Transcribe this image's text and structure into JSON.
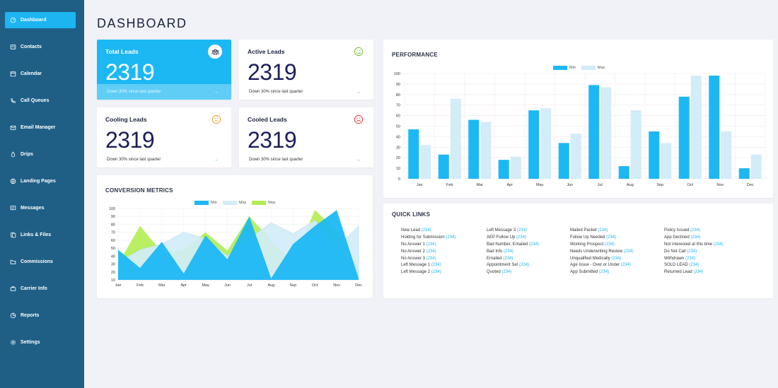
{
  "sidebar": {
    "items": [
      {
        "label": "Dashboard",
        "icon": "dashboard-icon",
        "active": true
      },
      {
        "label": "Contacts",
        "icon": "contacts-icon",
        "active": false
      },
      {
        "label": "Calendar",
        "icon": "calendar-icon",
        "active": false
      },
      {
        "label": "Call Queues",
        "icon": "phone-icon",
        "active": false
      },
      {
        "label": "Email Manager",
        "icon": "email-icon",
        "active": false
      },
      {
        "label": "Drips",
        "icon": "drop-icon",
        "active": false
      },
      {
        "label": "Landing Pages",
        "icon": "globe-icon",
        "active": false
      },
      {
        "label": "Messages",
        "icon": "message-icon",
        "active": false
      },
      {
        "label": "Links & Files",
        "icon": "files-icon",
        "active": false
      },
      {
        "label": "Commissions",
        "icon": "folder-icon",
        "active": false
      },
      {
        "label": "Carrier Info",
        "icon": "briefcase-icon",
        "active": false
      },
      {
        "label": "Reports",
        "icon": "pie-chart-icon",
        "active": false
      },
      {
        "label": "Settings",
        "icon": "gear-icon",
        "active": false
      }
    ]
  },
  "page": {
    "title": "DASHBOARD"
  },
  "stats": [
    {
      "label": "Total Leads",
      "value": "2319",
      "foot": "Down 30% since last quarter",
      "arrow": "→",
      "icon": "team-icon",
      "mood_color": "#1cb8f4"
    },
    {
      "label": "Active Leads",
      "value": "2319",
      "foot": "Down 30% since last quarter",
      "arrow": "→",
      "icon": "smile-icon",
      "mood_color": "#7cc242"
    },
    {
      "label": "Cooling Leads",
      "value": "2319",
      "foot": "Down 30% since last quarter",
      "arrow": "→",
      "icon": "neutral-face-icon",
      "mood_color": "#f2a935"
    },
    {
      "label": "Cooled Leads",
      "value": "2319",
      "foot": "Down 30% since last quarter",
      "arrow": "→",
      "icon": "sad-face-icon",
      "mood_color": "#e5463a"
    }
  ],
  "conversion": {
    "title": "CONVERSION METRICS"
  },
  "performance": {
    "title": "PERFORMANCE"
  },
  "quick_links": {
    "title": "QUICK LINKS",
    "columns": [
      [
        {
          "label": "New Lead",
          "count": "(234)"
        },
        {
          "label": "Holding for Submission",
          "count": "(234)"
        },
        {
          "label": "No Answer 1",
          "count": "(234)"
        },
        {
          "label": "No Answer 2",
          "count": "(234)"
        },
        {
          "label": "No Answer 3",
          "count": "(234)"
        },
        {
          "label": "Left Message 1",
          "count": "(234)"
        },
        {
          "label": "Left Message 2",
          "count": "(234)"
        }
      ],
      [
        {
          "label": "Left Message 3",
          "count": "(234)"
        },
        {
          "label": "AEP Follow Up",
          "count": "(234)"
        },
        {
          "label": "Bad Number, Emailed",
          "count": "(234)"
        },
        {
          "label": "Bad Info",
          "count": "(234)"
        },
        {
          "label": "Emailed",
          "count": "(234)"
        },
        {
          "label": "Appointment Set",
          "count": "(234)"
        },
        {
          "label": "Quoted",
          "count": "(234)"
        }
      ],
      [
        {
          "label": "Mailed Packet",
          "count": "(234)"
        },
        {
          "label": "Follow Up Needed",
          "count": "(234)"
        },
        {
          "label": "Working Prospect",
          "count": "(234)"
        },
        {
          "label": "Needs Underwriting Review",
          "count": "(234)"
        },
        {
          "label": "Unqualified Medically",
          "count": "(234)"
        },
        {
          "label": "Age Issue - Over or Under",
          "count": "(234)"
        },
        {
          "label": "App Submitted",
          "count": "(234)"
        }
      ],
      [
        {
          "label": "Policy Issued",
          "count": "(234)"
        },
        {
          "label": "App Declined",
          "count": "(234)"
        },
        {
          "label": "Not interested at this time",
          "count": "(234)"
        },
        {
          "label": "Do Not Call",
          "count": "(234)"
        },
        {
          "label": "Withdrawn",
          "count": "(234)"
        },
        {
          "label": "SOLD LEAD",
          "count": "(234)"
        },
        {
          "label": "Returned Lead",
          "count": "(234)"
        }
      ]
    ]
  },
  "colors": {
    "accent": "#1cb8f4",
    "light": "#d2ecf8",
    "green": "#b3ec52",
    "sidebar": "#1f5f86"
  },
  "chart_data": [
    {
      "type": "area",
      "categories": [
        "Jan",
        "Feb",
        "Mar",
        "Apr",
        "May",
        "Jun",
        "Jul",
        "Aug",
        "Sep",
        "Oct",
        "Nov",
        "Dec"
      ],
      "ylim": [
        10,
        100
      ],
      "yticks": [
        10,
        20,
        30,
        40,
        50,
        60,
        70,
        80,
        90,
        100
      ],
      "series": [
        {
          "name": "Min",
          "color": "#1cb8f4",
          "values": [
            48,
            25,
            58,
            18,
            66,
            36,
            90,
            12,
            55,
            78,
            98,
            12
          ]
        },
        {
          "name": "Max",
          "color": "#d2ecf8",
          "values": [
            32,
            48,
            55,
            70,
            62,
            40,
            62,
            82,
            68,
            85,
            50,
            78
          ]
        },
        {
          "name": "Max",
          "color": "#b3ec52",
          "values": [
            30,
            78,
            45,
            48,
            70,
            47,
            90,
            60,
            32,
            98,
            72,
            25
          ]
        }
      ]
    },
    {
      "type": "bar",
      "categories": [
        "Jan",
        "Feb",
        "Mar",
        "Apr",
        "May",
        "Jun",
        "Jul",
        "Aug",
        "Sep",
        "Oct",
        "Nov",
        "Dec"
      ],
      "ylim": [
        0,
        100
      ],
      "yticks": [
        0,
        10,
        20,
        30,
        40,
        50,
        60,
        70,
        80,
        90,
        100
      ],
      "series": [
        {
          "name": "Min",
          "color": "#1cb8f4",
          "values": [
            47,
            23,
            56,
            18,
            65,
            34,
            89,
            12,
            45,
            78,
            98,
            10
          ]
        },
        {
          "name": "Max",
          "color": "#d2ecf8",
          "values": [
            32,
            76,
            54,
            21,
            67,
            43,
            87,
            65,
            34,
            98,
            45,
            23
          ]
        }
      ]
    }
  ]
}
